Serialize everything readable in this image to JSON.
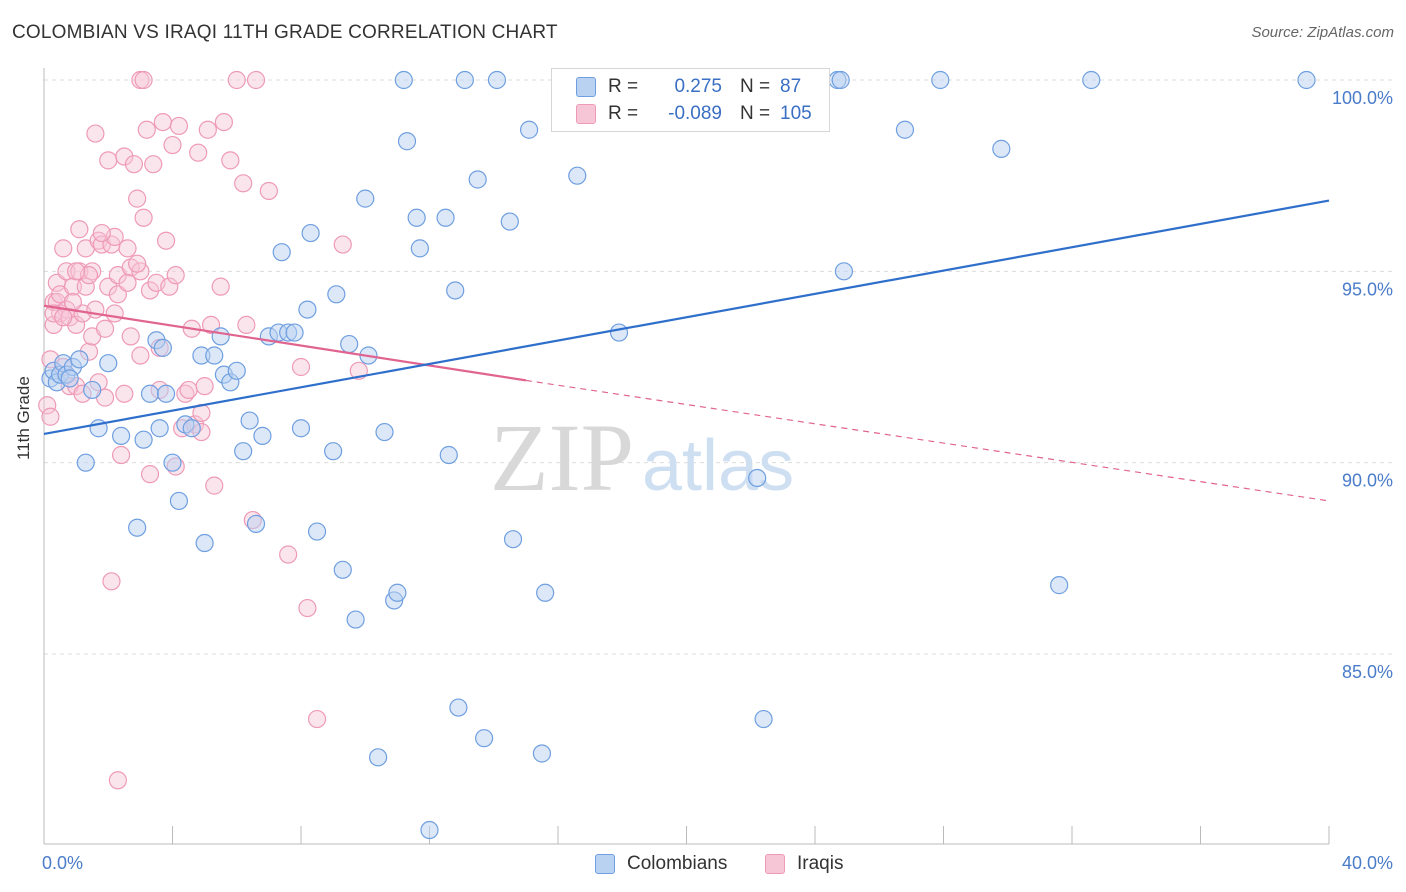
{
  "title": "COLOMBIAN VS IRAQI 11TH GRADE CORRELATION CHART",
  "source": "Source: ZipAtlas.com",
  "watermark": {
    "zip": "ZIP",
    "atlas": "atlas"
  },
  "colors": {
    "blue_fill": "#b9d2f2",
    "blue_stroke": "#6f9fe0",
    "blue_line": "#2f6fcc",
    "pink_fill": "#f7c6d6",
    "pink_stroke": "#ee9ab6",
    "pink_line": "#e0648f",
    "grid": "#dcdcdc",
    "tick_text": "#4a7cc9"
  },
  "legend": {
    "rows": [
      {
        "r_label": "R =",
        "r_value": "0.275",
        "n_label": "N =",
        "n_value": "87"
      },
      {
        "r_label": "R =",
        "r_value": "-0.089",
        "n_label": "N =",
        "n_value": "105"
      }
    ]
  },
  "bottom_legend": [
    "Colombians",
    "Iraqis"
  ],
  "chart_data": {
    "type": "scatter",
    "title": "COLOMBIAN VS IRAQI 11TH GRADE CORRELATION CHART",
    "xlabel": "",
    "ylabel": "11th Grade",
    "x_tick_labels": [
      "0.0%",
      "40.0%"
    ],
    "y_tick_labels": [
      "100.0%",
      "95.0%",
      "90.0%",
      "85.0%"
    ],
    "xlim": [
      0,
      40
    ],
    "ylim": [
      80.0,
      100.4
    ],
    "y_ticks": [
      100,
      95,
      90,
      85
    ],
    "grid": true,
    "legend_position": "top-center",
    "series": [
      {
        "name": "Colombians",
        "color": "#6f9fe0",
        "trend": {
          "x": [
            0,
            40
          ],
          "y": [
            90.75,
            96.85
          ],
          "style": "solid"
        },
        "points": [
          [
            0.2,
            92.2
          ],
          [
            0.3,
            92.4
          ],
          [
            0.4,
            92.1
          ],
          [
            0.5,
            92.3
          ],
          [
            0.6,
            92.6
          ],
          [
            0.7,
            92.3
          ],
          [
            0.9,
            92.5
          ],
          [
            1.1,
            92.7
          ],
          [
            1.3,
            90.0
          ],
          [
            1.5,
            91.9
          ],
          [
            1.7,
            90.9
          ],
          [
            2.0,
            92.6
          ],
          [
            2.4,
            90.7
          ],
          [
            2.9,
            88.3
          ],
          [
            3.1,
            90.6
          ],
          [
            3.3,
            91.8
          ],
          [
            3.5,
            93.2
          ],
          [
            3.6,
            90.9
          ],
          [
            3.7,
            93.0
          ],
          [
            3.8,
            91.8
          ],
          [
            4.0,
            90.0
          ],
          [
            4.2,
            89.0
          ],
          [
            4.4,
            91.0
          ],
          [
            4.6,
            90.9
          ],
          [
            4.9,
            92.8
          ],
          [
            5.0,
            87.9
          ],
          [
            5.3,
            92.8
          ],
          [
            5.5,
            93.3
          ],
          [
            5.6,
            92.3
          ],
          [
            5.8,
            92.1
          ],
          [
            6.0,
            92.4
          ],
          [
            6.2,
            90.3
          ],
          [
            6.4,
            91.1
          ],
          [
            6.6,
            88.4
          ],
          [
            6.8,
            90.7
          ],
          [
            7.0,
            93.3
          ],
          [
            7.3,
            93.4
          ],
          [
            7.4,
            95.5
          ],
          [
            7.6,
            93.4
          ],
          [
            7.8,
            93.4
          ],
          [
            8.0,
            90.9
          ],
          [
            8.2,
            94.0
          ],
          [
            8.3,
            96.0
          ],
          [
            8.5,
            88.2
          ],
          [
            9.0,
            90.3
          ],
          [
            9.1,
            94.4
          ],
          [
            9.3,
            87.2
          ],
          [
            9.5,
            93.1
          ],
          [
            9.7,
            85.9
          ],
          [
            10.0,
            96.9
          ],
          [
            10.1,
            92.8
          ],
          [
            10.4,
            82.3
          ],
          [
            10.6,
            90.8
          ],
          [
            10.9,
            86.4
          ],
          [
            11.0,
            86.6
          ],
          [
            11.2,
            100.0
          ],
          [
            11.3,
            98.4
          ],
          [
            11.6,
            96.4
          ],
          [
            11.7,
            95.6
          ],
          [
            12.0,
            80.4
          ],
          [
            12.5,
            96.4
          ],
          [
            12.6,
            90.2
          ],
          [
            12.8,
            94.5
          ],
          [
            12.9,
            83.6
          ],
          [
            13.1,
            100.0
          ],
          [
            13.5,
            97.4
          ],
          [
            13.7,
            82.8
          ],
          [
            14.1,
            100.0
          ],
          [
            14.5,
            96.3
          ],
          [
            14.6,
            88.0
          ],
          [
            15.1,
            98.7
          ],
          [
            15.5,
            82.4
          ],
          [
            15.6,
            86.6
          ],
          [
            16.6,
            97.5
          ],
          [
            17.9,
            93.4
          ],
          [
            22.2,
            89.6
          ],
          [
            22.4,
            83.3
          ],
          [
            24.7,
            100.0
          ],
          [
            24.8,
            100.0
          ],
          [
            24.9,
            95.0
          ],
          [
            26.8,
            98.7
          ],
          [
            27.9,
            100.0
          ],
          [
            29.8,
            98.2
          ],
          [
            31.6,
            86.8
          ],
          [
            32.6,
            100.0
          ],
          [
            39.3,
            100.0
          ],
          [
            0.8,
            92.2
          ]
        ]
      },
      {
        "name": "Iraqis",
        "color": "#ee9ab6",
        "trend_solid": {
          "x": [
            0,
            15.0
          ],
          "y": [
            94.1,
            92.15
          ]
        },
        "trend_dashed": {
          "x": [
            15.0,
            40
          ],
          "y": [
            92.15,
            89.0
          ]
        },
        "points": [
          [
            0.1,
            91.5
          ],
          [
            0.2,
            91.2
          ],
          [
            0.2,
            92.7
          ],
          [
            0.3,
            93.6
          ],
          [
            0.3,
            94.2
          ],
          [
            0.4,
            94.7
          ],
          [
            0.4,
            94.2
          ],
          [
            0.5,
            93.9
          ],
          [
            0.5,
            94.4
          ],
          [
            0.6,
            95.6
          ],
          [
            0.6,
            92.5
          ],
          [
            0.7,
            94.0
          ],
          [
            0.7,
            95.0
          ],
          [
            0.8,
            93.8
          ],
          [
            0.8,
            92.0
          ],
          [
            0.9,
            94.6
          ],
          [
            1.0,
            93.6
          ],
          [
            1.0,
            92.0
          ],
          [
            1.1,
            95.0
          ],
          [
            1.1,
            96.1
          ],
          [
            1.2,
            93.9
          ],
          [
            1.2,
            91.8
          ],
          [
            1.3,
            94.6
          ],
          [
            1.3,
            95.6
          ],
          [
            1.4,
            92.9
          ],
          [
            1.5,
            95.0
          ],
          [
            1.5,
            93.3
          ],
          [
            1.6,
            94.0
          ],
          [
            1.6,
            98.6
          ],
          [
            1.7,
            95.8
          ],
          [
            1.7,
            92.1
          ],
          [
            1.8,
            95.7
          ],
          [
            1.9,
            93.5
          ],
          [
            1.9,
            91.7
          ],
          [
            2.0,
            97.9
          ],
          [
            2.0,
            94.6
          ],
          [
            2.1,
            95.7
          ],
          [
            2.2,
            95.9
          ],
          [
            2.2,
            93.9
          ],
          [
            2.3,
            94.9
          ],
          [
            2.3,
            94.4
          ],
          [
            2.4,
            90.2
          ],
          [
            2.5,
            91.8
          ],
          [
            2.5,
            98.0
          ],
          [
            2.6,
            95.6
          ],
          [
            2.7,
            95.1
          ],
          [
            2.7,
            93.3
          ],
          [
            2.8,
            97.8
          ],
          [
            2.9,
            96.9
          ],
          [
            3.0,
            95.0
          ],
          [
            3.0,
            92.8
          ],
          [
            3.1,
            96.4
          ],
          [
            3.2,
            98.7
          ],
          [
            3.3,
            94.5
          ],
          [
            3.3,
            89.7
          ],
          [
            3.4,
            97.8
          ],
          [
            3.5,
            94.7
          ],
          [
            3.6,
            93.0
          ],
          [
            3.6,
            91.9
          ],
          [
            3.7,
            98.9
          ],
          [
            3.8,
            95.8
          ],
          [
            3.9,
            94.6
          ],
          [
            4.0,
            98.3
          ],
          [
            4.1,
            94.9
          ],
          [
            4.1,
            89.9
          ],
          [
            4.2,
            98.8
          ],
          [
            4.3,
            90.9
          ],
          [
            4.4,
            91.8
          ],
          [
            4.5,
            91.9
          ],
          [
            4.6,
            93.5
          ],
          [
            4.7,
            91.0
          ],
          [
            4.8,
            98.1
          ],
          [
            4.9,
            90.8
          ],
          [
            4.9,
            91.3
          ],
          [
            5.0,
            92.0
          ],
          [
            5.1,
            98.7
          ],
          [
            5.2,
            93.6
          ],
          [
            5.3,
            89.4
          ],
          [
            5.5,
            94.6
          ],
          [
            5.6,
            98.9
          ],
          [
            5.8,
            97.9
          ],
          [
            6.0,
            100.0
          ],
          [
            6.2,
            97.3
          ],
          [
            6.3,
            93.6
          ],
          [
            6.5,
            88.5
          ],
          [
            6.6,
            100.0
          ],
          [
            7.0,
            97.1
          ],
          [
            7.6,
            87.6
          ],
          [
            8.0,
            92.5
          ],
          [
            8.2,
            86.2
          ],
          [
            8.5,
            83.3
          ],
          [
            9.3,
            95.7
          ],
          [
            9.8,
            92.4
          ],
          [
            0.3,
            93.9
          ],
          [
            2.1,
            86.9
          ],
          [
            2.3,
            81.7
          ],
          [
            3.0,
            100.0
          ],
          [
            3.1,
            100.0
          ],
          [
            1.8,
            96.0
          ],
          [
            0.9,
            94.2
          ],
          [
            1.4,
            94.9
          ],
          [
            2.6,
            94.7
          ],
          [
            0.6,
            93.8
          ],
          [
            1.0,
            95.0
          ],
          [
            2.9,
            95.2
          ]
        ]
      }
    ]
  }
}
